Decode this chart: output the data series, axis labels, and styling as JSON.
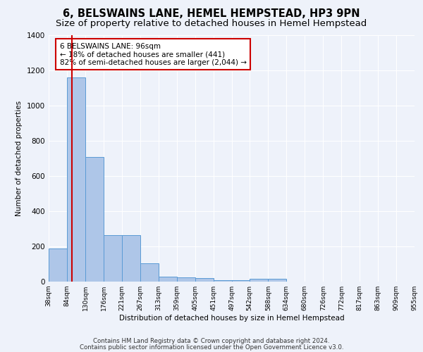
{
  "title": "6, BELSWAINS LANE, HEMEL HEMPSTEAD, HP3 9PN",
  "subtitle": "Size of property relative to detached houses in Hemel Hempstead",
  "xlabel": "Distribution of detached houses by size in Hemel Hempstead",
  "ylabel": "Number of detached properties",
  "footnote1": "Contains HM Land Registry data © Crown copyright and database right 2024.",
  "footnote2": "Contains public sector information licensed under the Open Government Licence v3.0.",
  "annotation_title": "6 BELSWAINS LANE: 96sqm",
  "annotation_line1": "← 18% of detached houses are smaller (441)",
  "annotation_line2": "82% of semi-detached houses are larger (2,044) →",
  "property_size": 96,
  "bar_edges": [
    38,
    84,
    130,
    176,
    221,
    267,
    313,
    359,
    405,
    451,
    497,
    542,
    588,
    634,
    680,
    726,
    772,
    817,
    863,
    909,
    955
  ],
  "bar_heights": [
    190,
    1160,
    710,
    265,
    265,
    105,
    30,
    25,
    20,
    10,
    10,
    17,
    15,
    0,
    0,
    0,
    0,
    0,
    0,
    0
  ],
  "bar_color": "#aec6e8",
  "bar_edge_color": "#5b9bd5",
  "red_line_color": "#cc0000",
  "background_color": "#eef2fa",
  "grid_color": "#ffffff",
  "ylim": [
    0,
    1400
  ],
  "yticks": [
    0,
    200,
    400,
    600,
    800,
    1000,
    1200,
    1400
  ],
  "annotation_box_color": "#ffffff",
  "annotation_box_edge": "#cc0000",
  "title_fontsize": 10.5,
  "subtitle_fontsize": 9.5
}
